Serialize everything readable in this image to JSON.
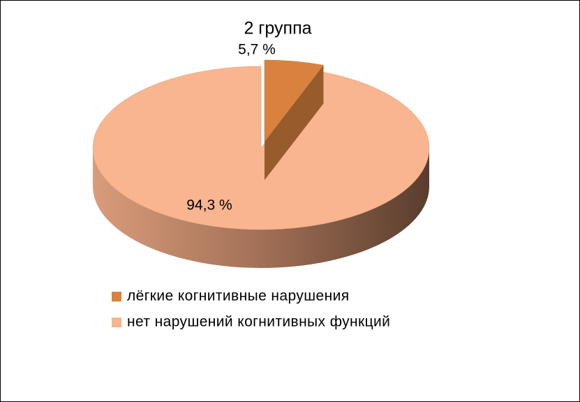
{
  "chart_data": {
    "type": "pie",
    "title": "2 группа",
    "categories": [
      "лёгкие когнитивные нарушения",
      "нет нарушений когнитивных функций"
    ],
    "values": [
      5.7,
      94.3
    ],
    "value_labels": [
      "5,7 %",
      "94,3 %"
    ],
    "colors": [
      "#d9823f",
      "#f8b58f"
    ],
    "legend": "bottom"
  }
}
